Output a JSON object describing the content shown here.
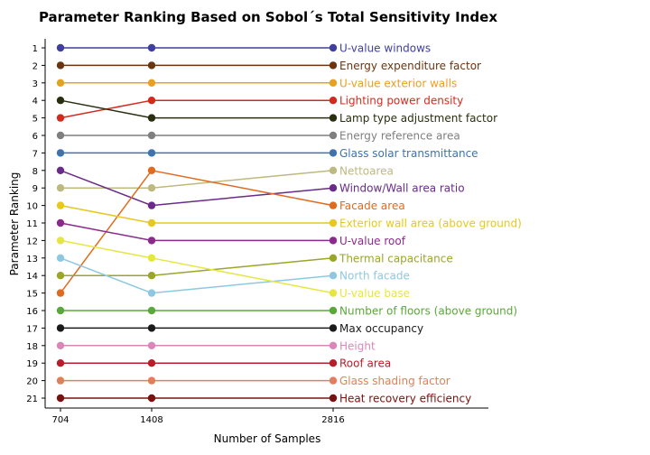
{
  "chart_data": {
    "type": "line",
    "title": "Parameter Ranking Based on Sobol´s Total Sensitivity Index",
    "xlabel": "Number of Samples",
    "ylabel": "Parameter Ranking",
    "x": [
      704,
      1408,
      2816
    ],
    "x_tick_labels": [
      "704",
      "1408",
      "2816"
    ],
    "ylim": [
      1,
      21
    ],
    "y_inverted": true,
    "y_ticks": [
      1,
      2,
      3,
      4,
      5,
      6,
      7,
      8,
      9,
      10,
      11,
      12,
      13,
      14,
      15,
      16,
      17,
      18,
      19,
      20,
      21
    ],
    "grid": false,
    "legend": "labels at line ends (right)",
    "series": [
      {
        "name": "U-value windows",
        "values": [
          1,
          1,
          1
        ],
        "color": "#3f3f9f"
      },
      {
        "name": "Energy expenditure factor",
        "values": [
          2,
          2,
          2
        ],
        "color": "#6b3510"
      },
      {
        "name": "U-value exterior walls",
        "values": [
          3,
          3,
          3
        ],
        "color": "#e8a020"
      },
      {
        "name": "Lighting power density",
        "values": [
          5,
          4,
          4
        ],
        "color": "#d42a1e"
      },
      {
        "name": "Lamp type adjustment factor",
        "values": [
          4,
          5,
          5
        ],
        "color": "#2a2e10"
      },
      {
        "name": "Energy reference area",
        "values": [
          6,
          6,
          6
        ],
        "color": "#7f7f7f"
      },
      {
        "name": "Glass solar transmittance",
        "values": [
          7,
          7,
          7
        ],
        "color": "#3e72b0"
      },
      {
        "name": "Nettoarea",
        "values": [
          9,
          9,
          8
        ],
        "color": "#bdb97f"
      },
      {
        "name": "Window/Wall area ratio",
        "values": [
          8,
          10,
          9
        ],
        "color": "#6a2a8a"
      },
      {
        "name": "Facade area",
        "values": [
          15,
          8,
          10
        ],
        "color": "#e06a1e"
      },
      {
        "name": "Exterior wall area (above ground)",
        "values": [
          10,
          11,
          11
        ],
        "color": "#e6c81e"
      },
      {
        "name": "U-value roof",
        "values": [
          11,
          12,
          12
        ],
        "color": "#8a2a8a"
      },
      {
        "name": "Thermal capacitance",
        "values": [
          14,
          14,
          13
        ],
        "color": "#9aa62a"
      },
      {
        "name": "North facade",
        "values": [
          13,
          15,
          14
        ],
        "color": "#8ec8e0"
      },
      {
        "name": "U-value base",
        "values": [
          12,
          13,
          15
        ],
        "color": "#e6e640"
      },
      {
        "name": "Number of floors (above ground)",
        "values": [
          16,
          16,
          16
        ],
        "color": "#5aa83a"
      },
      {
        "name": "Max occupancy",
        "values": [
          17,
          17,
          17
        ],
        "color": "#1a1a1a"
      },
      {
        "name": "Height",
        "values": [
          18,
          18,
          18
        ],
        "color": "#d888b8"
      },
      {
        "name": "Roof area",
        "values": [
          19,
          19,
          19
        ],
        "color": "#b81e2a"
      },
      {
        "name": "Glass shading factor",
        "values": [
          20,
          20,
          20
        ],
        "color": "#e0805a"
      },
      {
        "name": "Heat recovery efficiency",
        "values": [
          21,
          21,
          21
        ],
        "color": "#7a1010"
      }
    ]
  }
}
